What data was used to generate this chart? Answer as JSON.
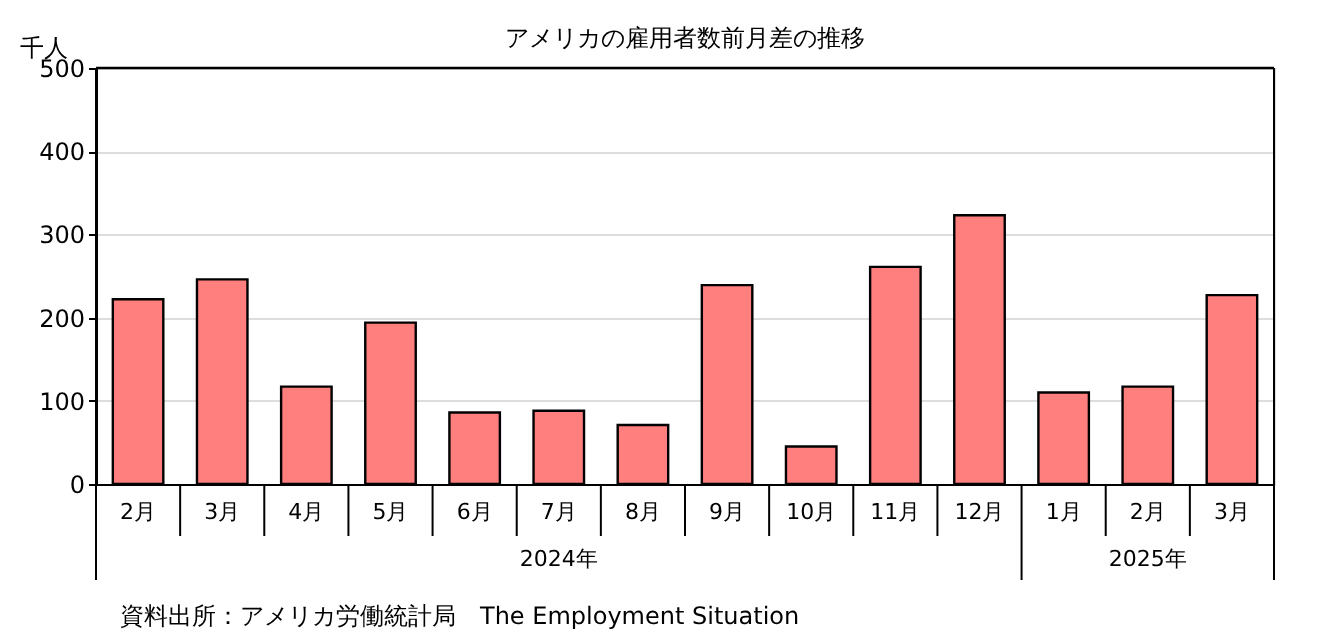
{
  "chart_data": {
    "type": "bar",
    "title": "アメリカの雇用者数前月差の推移",
    "ylabel": "千人",
    "categories": [
      "2月",
      "3月",
      "4月",
      "5月",
      "6月",
      "7月",
      "8月",
      "9月",
      "10月",
      "11月",
      "12月",
      "1月",
      "2月",
      "3月"
    ],
    "values": [
      222,
      246,
      117,
      194,
      86,
      88,
      71,
      239,
      45,
      261,
      323,
      110,
      117,
      227
    ],
    "color": "#ff7f7f",
    "ylim": [
      0,
      500
    ],
    "yticks": [
      0,
      100,
      200,
      300,
      400,
      500
    ],
    "grid": "y",
    "annotations": [
      "2024年",
      "2025年",
      "資料出所：アメリカ労働統計局　The Employment Situation"
    ]
  }
}
